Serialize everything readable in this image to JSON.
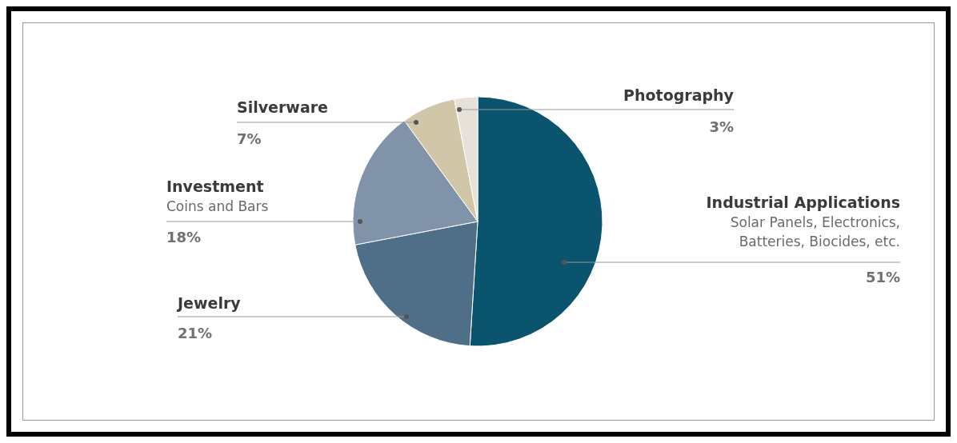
{
  "chart_data": {
    "type": "pie",
    "categories": [
      "Industrial Applications",
      "Jewelry",
      "Investment",
      "Silverware",
      "Photography"
    ],
    "values": [
      51,
      21,
      18,
      7,
      3
    ],
    "value_labels": [
      "51%",
      "21%",
      "18%",
      "7%",
      "3%"
    ],
    "colors": [
      "#0b546e",
      "#4f6f88",
      "#8193a9",
      "#d1c7a8",
      "#e7e2d9"
    ],
    "annotations": [
      {
        "text": "Solar Panels, Electronics, Batteries, Biocides, etc.",
        "x": "Industrial Applications"
      },
      {
        "text": "Coins and Bars",
        "x": "Investment"
      }
    ]
  }
}
